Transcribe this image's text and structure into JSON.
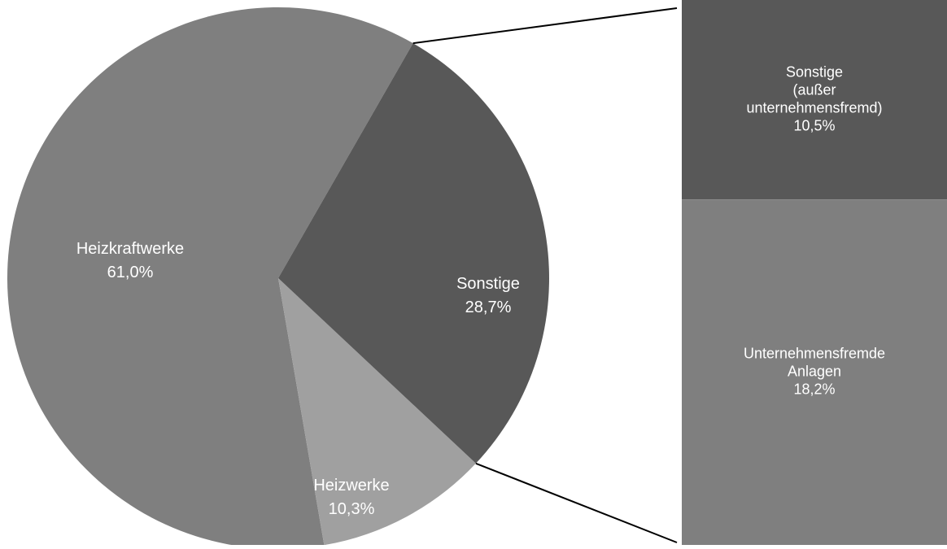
{
  "chart_data": {
    "type": "pie",
    "variant": "bar-of-pie",
    "slices": [
      {
        "label": "Heizkraftwerke",
        "value": 61.0,
        "display": "61,0%",
        "color": "#7f7f7f"
      },
      {
        "label": "Heizwerke",
        "value": 10.3,
        "display": "10,3%",
        "color": "#a0a0a0"
      },
      {
        "label": "Sonstige",
        "value": 28.7,
        "display": "28,7%",
        "color": "#585858"
      }
    ],
    "breakdown": {
      "of": "Sonstige",
      "segments": [
        {
          "label_lines": [
            "Sonstige",
            "(außer",
            "unternehmensfremd)"
          ],
          "value": 10.5,
          "display": "10,5%",
          "color": "#585858"
        },
        {
          "label_lines": [
            "Unternehmensfremde",
            "Anlagen"
          ],
          "value": 18.2,
          "display": "18,2%",
          "color": "#7f7f7f"
        }
      ]
    }
  }
}
